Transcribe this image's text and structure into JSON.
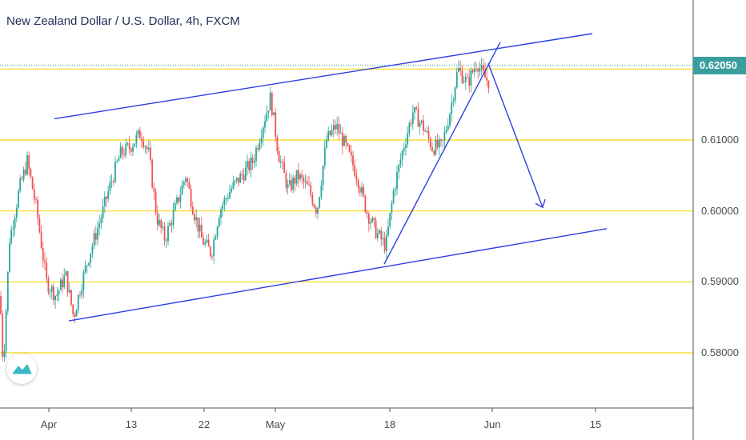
{
  "chart_data": {
    "type": "candlestick",
    "title": "New Zealand Dollar / U.S. Dollar, 4h, FXCM",
    "ylim": [
      0.5725,
      0.6285
    ],
    "y_ticks": [
      {
        "value": 0.58,
        "label": "0.58000"
      },
      {
        "value": 0.59,
        "label": "0.59000"
      },
      {
        "value": 0.6,
        "label": "0.60000"
      },
      {
        "value": 0.61,
        "label": "0.61000"
      }
    ],
    "x_ticks": [
      "Apr",
      "13",
      "22",
      "May",
      "18",
      "Jun",
      "15"
    ],
    "current_price": {
      "value": 0.6205,
      "label": "0.62050"
    },
    "horizontal_levels": [
      0.58,
      0.59,
      0.6,
      0.61,
      0.62
    ],
    "price_path": [
      [
        0,
        0.588
      ],
      [
        4,
        0.578
      ],
      [
        12,
        0.596
      ],
      [
        24,
        0.603
      ],
      [
        34,
        0.607
      ],
      [
        46,
        0.6
      ],
      [
        58,
        0.59
      ],
      [
        70,
        0.588
      ],
      [
        82,
        0.591
      ],
      [
        92,
        0.585
      ],
      [
        100,
        0.589
      ],
      [
        112,
        0.594
      ],
      [
        126,
        0.599
      ],
      [
        136,
        0.603
      ],
      [
        150,
        0.608
      ],
      [
        162,
        0.609
      ],
      [
        176,
        0.611
      ],
      [
        186,
        0.608
      ],
      [
        196,
        0.599
      ],
      [
        206,
        0.596
      ],
      [
        218,
        0.6
      ],
      [
        232,
        0.605
      ],
      [
        242,
        0.6
      ],
      [
        252,
        0.596
      ],
      [
        264,
        0.594
      ],
      [
        274,
        0.6
      ],
      [
        288,
        0.603
      ],
      [
        302,
        0.605
      ],
      [
        316,
        0.607
      ],
      [
        328,
        0.612
      ],
      [
        338,
        0.616
      ],
      [
        348,
        0.608
      ],
      [
        360,
        0.603
      ],
      [
        372,
        0.605
      ],
      [
        386,
        0.603
      ],
      [
        396,
        0.6
      ],
      [
        408,
        0.61
      ],
      [
        420,
        0.612
      ],
      [
        432,
        0.609
      ],
      [
        446,
        0.605
      ],
      [
        458,
        0.6
      ],
      [
        470,
        0.597
      ],
      [
        482,
        0.595
      ],
      [
        492,
        0.603
      ],
      [
        504,
        0.609
      ],
      [
        516,
        0.614
      ],
      [
        528,
        0.612
      ],
      [
        540,
        0.609
      ],
      [
        552,
        0.609
      ],
      [
        562,
        0.614
      ],
      [
        572,
        0.62
      ],
      [
        584,
        0.618
      ],
      [
        596,
        0.621
      ],
      [
        604,
        0.619
      ],
      [
        612,
        0.618
      ]
    ],
    "drawings": {
      "channel_upper": [
        [
          68,
          0.613
        ],
        [
          740,
          0.625
        ]
      ],
      "channel_lower": [
        [
          86,
          0.5845
        ],
        [
          758,
          0.5975
        ]
      ],
      "trendline": [
        [
          480,
          0.5925
        ],
        [
          625,
          0.6238
        ]
      ],
      "projection_arrow": [
        [
          610,
          0.6208
        ],
        [
          678,
          0.6005
        ]
      ]
    },
    "colors": {
      "up": "#26a69a",
      "down": "#ef5350",
      "level": "#f5d90f",
      "drawing": "#2d3fe0",
      "price_line": "#2aa5a5",
      "badge": "#3a9e9e"
    }
  }
}
